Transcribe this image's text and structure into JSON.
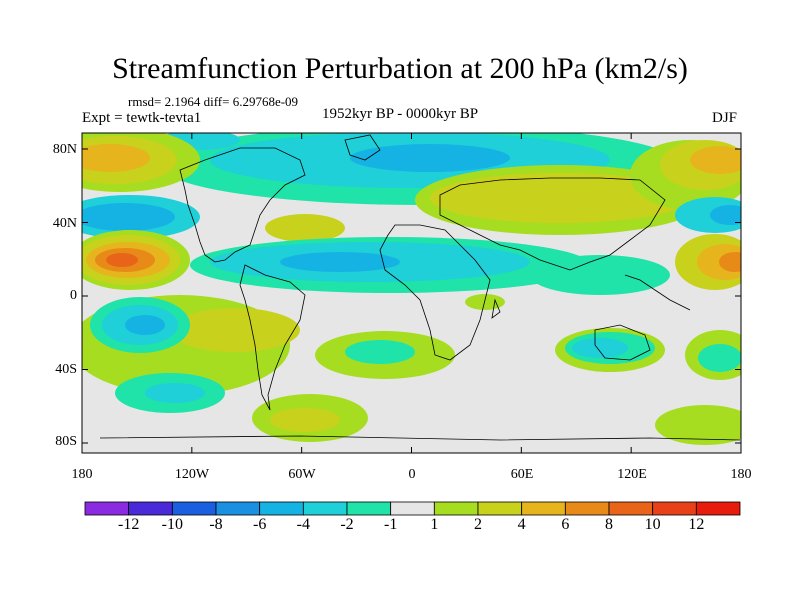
{
  "title": "Streamfunction Perturbation at 200 hPa (km2/s)",
  "stats": "rmsd= 2.1964 diff= 6.29768e-09",
  "experiment": "Expt = tewtk-tevta1",
  "period": "1952kyr BP - 0000kyr BP",
  "season": "DJF",
  "lat_labels": [
    "80N",
    "40N",
    "0",
    "40S",
    "80S"
  ],
  "lon_labels": [
    "180",
    "120W",
    "60W",
    "0",
    "60E",
    "120E",
    "180"
  ],
  "colorbar": {
    "labels": [
      "-12",
      "-10",
      "-8",
      "-6",
      "-4",
      "-2",
      "-1",
      "1",
      "2",
      "4",
      "6",
      "8",
      "10",
      "12"
    ],
    "colors": [
      "#8a2be2",
      "#4a2ad8",
      "#1a5fe0",
      "#1990e0",
      "#15b3e3",
      "#1fd0d8",
      "#1fe3a8",
      "#e6e6e6",
      "#a6dd20",
      "#c8d21c",
      "#e6b41c",
      "#e88a18",
      "#e86418",
      "#e84018",
      "#e81c0c"
    ]
  },
  "colors": {
    "neutral": "#e6e6e6",
    "coast": "#000000"
  }
}
